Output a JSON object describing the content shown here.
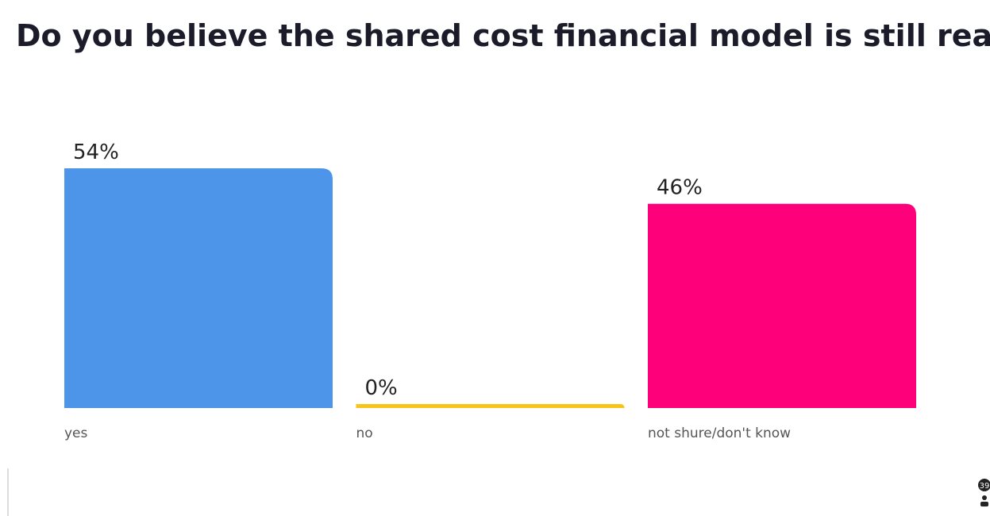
{
  "chart_data": {
    "type": "bar",
    "title": "Do you believe the shared cost financial model is still reasonable?",
    "categories": [
      "yes",
      "no",
      "not shure/don't know"
    ],
    "values": [
      54,
      0,
      46
    ],
    "value_labels": [
      "54%",
      "0%",
      "46%"
    ],
    "colors": [
      "#4c95e9",
      "#f7c51a",
      "#ff007b"
    ]
  },
  "participant_count": 39
}
